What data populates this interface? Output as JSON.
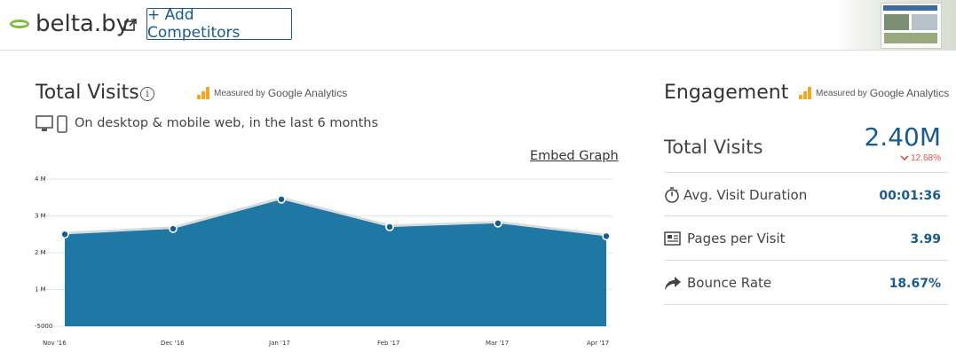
{
  "header": {
    "site": "belta.by",
    "add_competitors": "+ Add Competitors"
  },
  "total_visits_section": {
    "title": "Total Visits",
    "info": "i",
    "ga_small": "Measured by",
    "ga_big": "Google Analytics",
    "subtitle": "On desktop & mobile web, in the last 6 months",
    "embed": "Embed Graph"
  },
  "chart_data": {
    "type": "area",
    "categories": [
      "Nov '16",
      "Dec '16",
      "Jan '17",
      "Feb '17",
      "Mar '17",
      "Apr '17"
    ],
    "values": [
      2500000,
      2650000,
      3450000,
      2700000,
      2800000,
      2450000
    ],
    "y_ticks": [
      "4 M",
      "3 M",
      "2 M",
      "1 M",
      "-5000"
    ],
    "ylim": [
      0,
      4000000
    ],
    "grid": true,
    "fill_color": "#1f77a4"
  },
  "engagement": {
    "title": "Engagement",
    "ga_small": "Measured by",
    "ga_big": "Google Analytics",
    "total_visits_label": "Total Visits",
    "total_visits_value": "2.40M",
    "change": "12.68%",
    "rows": [
      {
        "label": "Avg. Visit Duration",
        "value": "00:01:36",
        "icon": "stopwatch-icon"
      },
      {
        "label": "Pages per Visit",
        "value": "3.99",
        "icon": "pages-icon"
      },
      {
        "label": "Bounce Rate",
        "value": "18.67%",
        "icon": "bounce-arrow-icon"
      }
    ]
  },
  "colors": {
    "accent": "#1a5b8e",
    "negative": "#d9534f",
    "brand_green": "#7cbd3c",
    "ga_orange": "#f5a623"
  }
}
